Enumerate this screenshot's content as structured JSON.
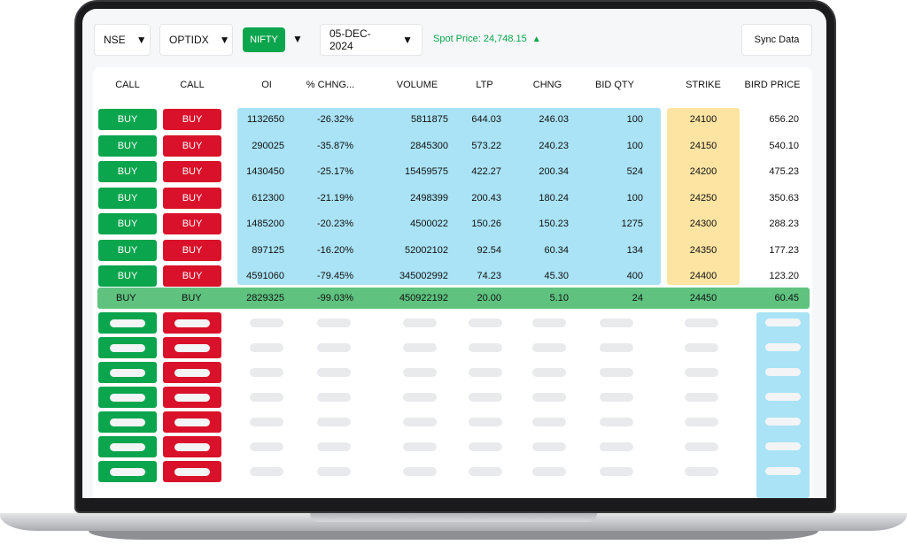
{
  "toolbar": {
    "exchange": "NSE",
    "instrument": "OPTIDX",
    "symbol": "NIFTY",
    "expiry": "05-DEC-2024",
    "spot_price": "Spot Price: 24,748.15",
    "sync_label": "Sync Data",
    "caret": "▼",
    "up_arrow": "▲"
  },
  "columns": [
    "CALL",
    "CALL",
    "OI",
    "% CHNG...",
    "VOLUME",
    "LTP",
    "CHNG",
    "BID QTY",
    "STRIKE",
    "BIRD PRICE"
  ],
  "rows": [
    {
      "call1": "BUY",
      "call2": "BUY",
      "oi": "1132650",
      "pct": "-26.32%",
      "volume": "5811875",
      "ltp": "644.03",
      "chng": "246.03",
      "bidqty": "100",
      "strike": "24100",
      "price": "656.20"
    },
    {
      "call1": "BUY",
      "call2": "BUY",
      "oi": "290025",
      "pct": "-35.87%",
      "volume": "2845300",
      "ltp": "573.22",
      "chng": "240.23",
      "bidqty": "100",
      "strike": "24150",
      "price": "540.10"
    },
    {
      "call1": "BUY",
      "call2": "BUY",
      "oi": "1430450",
      "pct": "-25.17%",
      "volume": "15459575",
      "ltp": "422.27",
      "chng": "200.34",
      "bidqty": "524",
      "strike": "24200",
      "price": "475.23"
    },
    {
      "call1": "BUY",
      "call2": "BUY",
      "oi": "612300",
      "pct": "-21.19%",
      "volume": "2498399",
      "ltp": "200.43",
      "chng": "180.24",
      "bidqty": "100",
      "strike": "24250",
      "price": "350.63"
    },
    {
      "call1": "BUY",
      "call2": "BUY",
      "oi": "1485200",
      "pct": "-20.23%",
      "volume": "4500022",
      "ltp": "150.26",
      "chng": "150.23",
      "bidqty": "1275",
      "strike": "24300",
      "price": "288.23"
    },
    {
      "call1": "BUY",
      "call2": "BUY",
      "oi": "897125",
      "pct": "-16.20%",
      "volume": "52002102",
      "ltp": "92.54",
      "chng": "60.34",
      "bidqty": "134",
      "strike": "24350",
      "price": "177.23"
    },
    {
      "call1": "BUY",
      "call2": "BUY",
      "oi": "4591060",
      "pct": "-79.45%",
      "volume": "345002992",
      "ltp": "74.23",
      "chng": "45.30",
      "bidqty": "400",
      "strike": "24400",
      "price": "123.20"
    }
  ],
  "highlight_row": {
    "call1": "BUY",
    "call2": "BUY",
    "oi": "2829325",
    "pct": "-99.03%",
    "volume": "450922192",
    "ltp": "20.00",
    "chng": "5.10",
    "bidqty": "24",
    "strike": "24450",
    "price": "60.45"
  },
  "colors": {
    "green": "#0aa54d",
    "red": "#d9112a",
    "blue": "#a9e3f5",
    "yellow": "#fde4a2",
    "highlight": "#5fc27f"
  }
}
